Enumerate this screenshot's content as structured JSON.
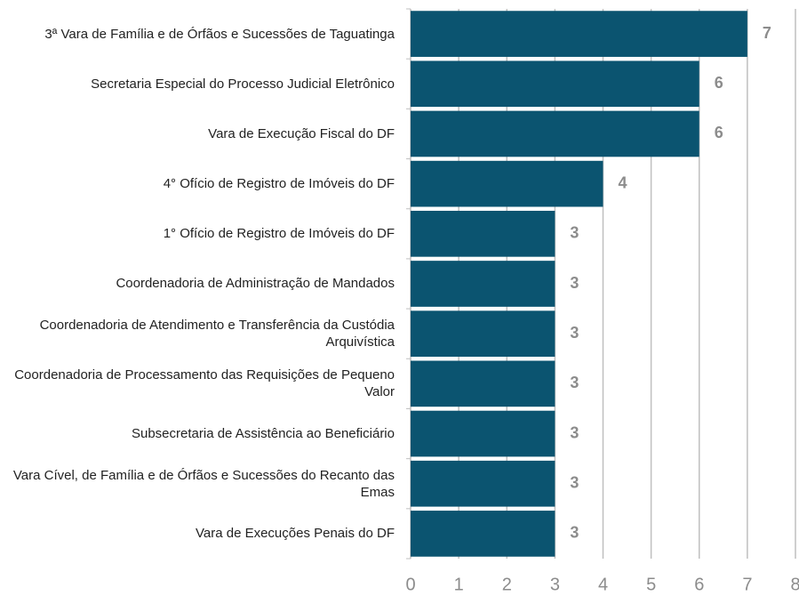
{
  "chart_data": {
    "type": "hbar",
    "categories": [
      "3ª Vara de Família e de Órfãos e Sucessões de Taguatinga",
      "Secretaria Especial do Processo Judicial Eletrônico",
      "Vara de Execução Fiscal do DF",
      "4° Ofício de Registro de Imóveis do DF",
      "1° Ofício de Registro de Imóveis do DF",
      "Coordenadoria de Administração de Mandados",
      "Coordenadoria de Atendimento e Transferência da Custódia Arquivística",
      "Coordenadoria de Processamento das Requisições de Pequeno Valor",
      "Subsecretaria de Assistência ao Beneficiário",
      "Vara Cível, de Família e de Órfãos e Sucessões do Recanto das Emas",
      "Vara de Execuções Penais do DF"
    ],
    "values": [
      7,
      6,
      6,
      4,
      3,
      3,
      3,
      3,
      3,
      3,
      3
    ],
    "color": "#0b5470",
    "xlim": [
      0,
      8
    ],
    "xticks": [
      0,
      1,
      2,
      3,
      4,
      5,
      6,
      7,
      8
    ],
    "grid": true
  }
}
